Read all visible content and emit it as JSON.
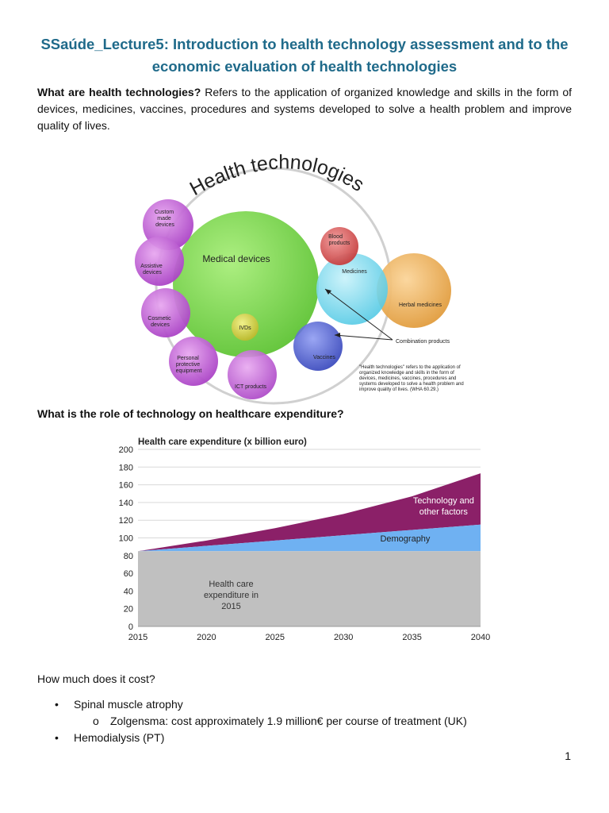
{
  "document": {
    "title": "SSaúde_Lecture5: Introduction to health technology assessment and to the economic evaluation of health technologies",
    "intro_bold": "What are health technologies?",
    "intro_text": " Refers to the application of organized knowledge and skills in the form of devices, medicines, vaccines, procedures and systems developed to solve a health problem and improve quality of lives.",
    "question_2": "What is the role of technology on healthcare expenditure?",
    "question_3": "How much does it cost?",
    "bullets": [
      {
        "text": "Spinal muscle atrophy",
        "sub": [
          "Zolgensma: cost approximately 1.9 million€ per course of treatment (UK)"
        ]
      },
      {
        "text": "Hemodialysis (PT)",
        "sub": []
      }
    ],
    "bullet_glyph": "•",
    "sub_bullet_glyph": "o",
    "page_number": "1"
  },
  "figure": {
    "title": "Health technologies",
    "big_circle": "Medical devices",
    "small_circles": {
      "custom": [
        "Custom",
        "made",
        "devices"
      ],
      "assistive": [
        "Assistive",
        "devices"
      ],
      "cosmetic": [
        "Cosmetic",
        "devices"
      ],
      "ppe": [
        "Personal",
        "protective",
        "equipment"
      ],
      "ict": "ICT products",
      "ivds": "IVDs",
      "blood": [
        "Blood",
        "products"
      ],
      "medicines": "Medicines",
      "herbal": "Herbal medicines",
      "vaccines": "Vaccines"
    },
    "combination": "Combination products",
    "quote": [
      "\"Health technologies\" refers to the application of",
      "organized knowledge and skills in the form of",
      "devices, medicines, vaccines, procedures and",
      "systems developed to solve a health problem and",
      "improve quality of lives. (WHA 60.29.)"
    ],
    "colors": {
      "green": "#7ed957",
      "purple": "#c45fd8",
      "cyan": "#7fdcef",
      "orange": "#f0b259",
      "blue": "#4a5fd6",
      "red": "#e25c5c",
      "ivd": "#d8d84a",
      "grey": "#c8c8c8"
    }
  },
  "chart_data": {
    "type": "area",
    "title": "Health care expenditure (x billion euro)",
    "x": [
      2015,
      2020,
      2025,
      2030,
      2035,
      2040
    ],
    "xticks": [
      "2015",
      "2020",
      "2025",
      "2030",
      "2035",
      "2040"
    ],
    "yticks": [
      "0",
      "20",
      "40",
      "60",
      "80",
      "100",
      "120",
      "140",
      "160",
      "180",
      "200"
    ],
    "ylim": [
      0,
      200
    ],
    "xlim": [
      2015,
      2040
    ],
    "grid": true,
    "stacked_totals": [
      {
        "name": "Health care expenditure in 2015",
        "label_lines": [
          "Health care",
          "expenditure in",
          "2015"
        ],
        "color": "#c0c0c0",
        "values": [
          85,
          85,
          85,
          85,
          85,
          85
        ]
      },
      {
        "name": "Demography",
        "label_lines": [
          "Demography"
        ],
        "color": "#6fb1f2",
        "values": [
          85,
          91,
          97,
          103,
          109,
          115
        ]
      },
      {
        "name": "Technology and other factors",
        "label_lines": [
          "Technology and",
          "other factors"
        ],
        "color": "#8b2068",
        "values": [
          85,
          97,
          111,
          127,
          147,
          173
        ]
      }
    ]
  }
}
